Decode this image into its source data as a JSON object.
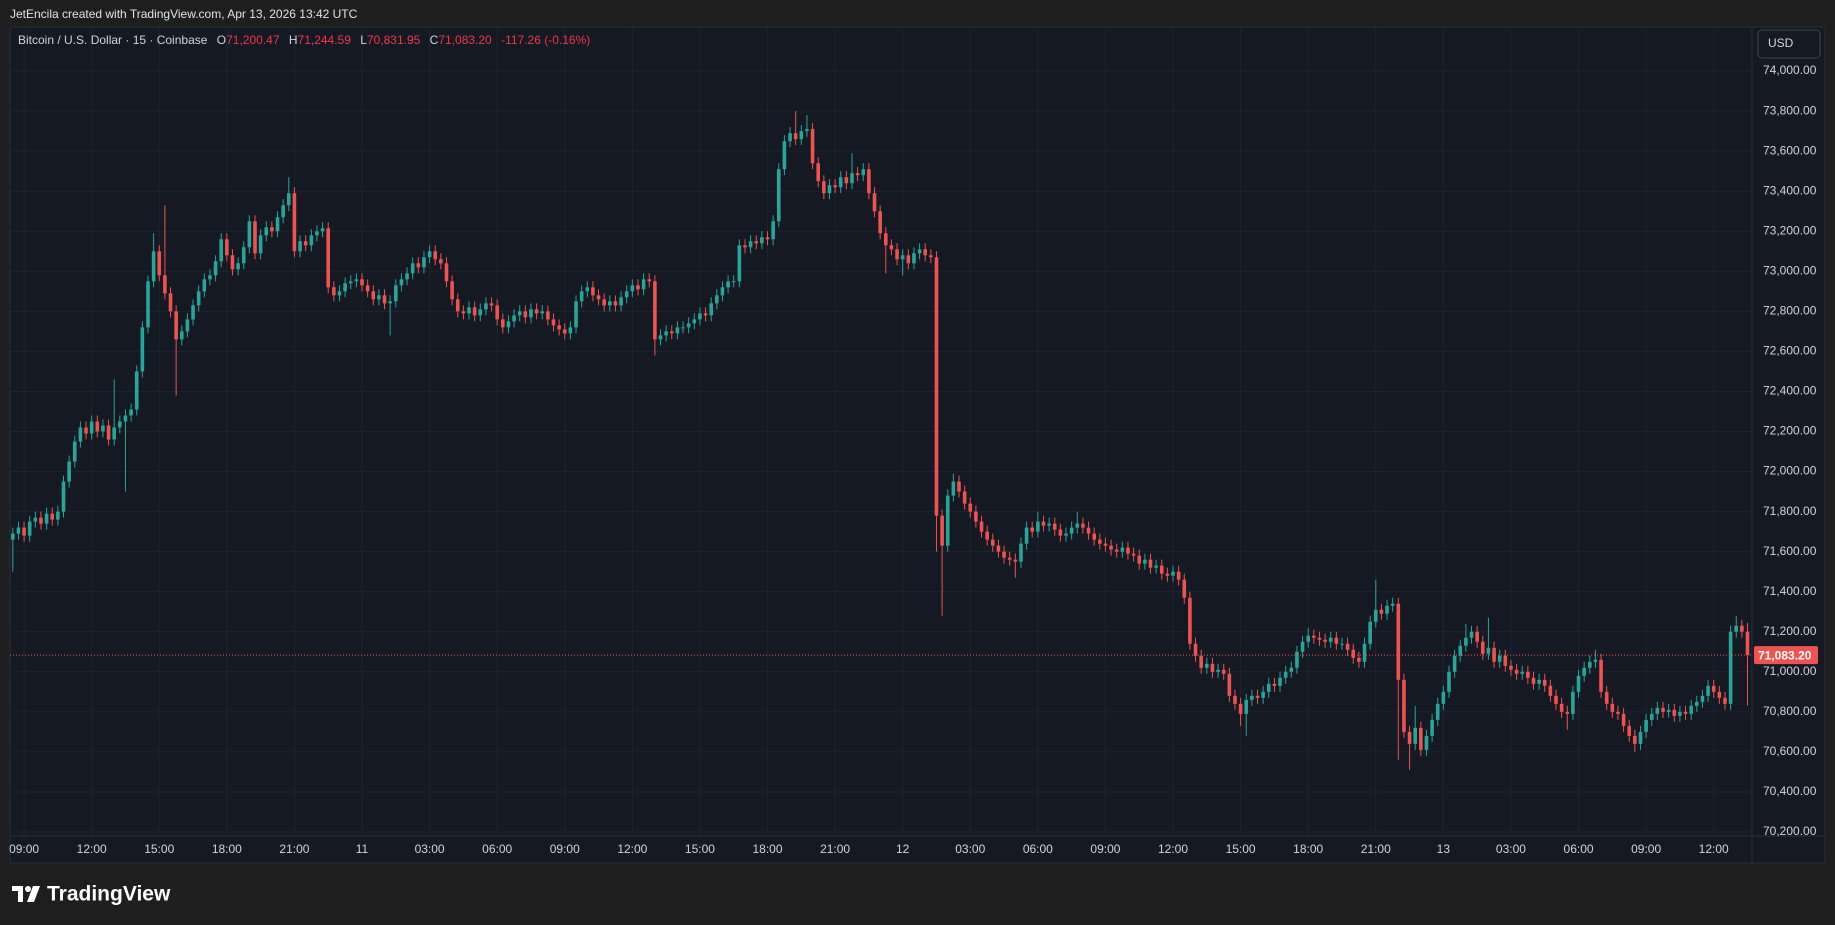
{
  "header": "JetEncila created with TradingView.com, Apr 13, 2026 13:42 UTC",
  "footer": {
    "brand": "TradingView"
  },
  "chart_data": {
    "type": "candlestick",
    "symbol": "Bitcoin / U.S. Dollar · 15 · Coinbase",
    "currency": "USD",
    "legend": {
      "keys": [
        "O",
        "H",
        "L",
        "C"
      ],
      "values": [
        "71,200.47",
        "71,244.59",
        "70,831.95",
        "71,083.20"
      ],
      "change": "-117.26 (-0.16%)"
    },
    "up_color": "#26a69a",
    "down_color": "#ef5350",
    "grid": true,
    "xlim": [
      -0.5,
      308.8
    ],
    "xticks": [
      {
        "value": 2,
        "label": "09:00"
      },
      {
        "value": 14,
        "label": "12:00"
      },
      {
        "value": 26,
        "label": "15:00"
      },
      {
        "value": 38,
        "label": "18:00"
      },
      {
        "value": 50,
        "label": "21:00"
      },
      {
        "value": 62,
        "label": "11"
      },
      {
        "value": 74,
        "label": "03:00"
      },
      {
        "value": 86,
        "label": "06:00"
      },
      {
        "value": 98,
        "label": "09:00"
      },
      {
        "value": 110,
        "label": "12:00"
      },
      {
        "value": 122,
        "label": "15:00"
      },
      {
        "value": 134,
        "label": "18:00"
      },
      {
        "value": 146,
        "label": "21:00"
      },
      {
        "value": 158,
        "label": "12"
      },
      {
        "value": 170,
        "label": "03:00"
      },
      {
        "value": 182,
        "label": "06:00"
      },
      {
        "value": 194,
        "label": "09:00"
      },
      {
        "value": 206,
        "label": "12:00"
      },
      {
        "value": 218,
        "label": "15:00"
      },
      {
        "value": 230,
        "label": "18:00"
      },
      {
        "value": 242,
        "label": "21:00"
      },
      {
        "value": 254,
        "label": "13"
      },
      {
        "value": 266,
        "label": "03:00"
      },
      {
        "value": 278,
        "label": "06:00"
      },
      {
        "value": 290,
        "label": "09:00"
      },
      {
        "value": 302,
        "label": "12:00"
      }
    ],
    "ylim": [
      70180,
      74215
    ],
    "yticks": [
      {
        "value": 70200,
        "label": "70,200.00"
      },
      {
        "value": 70400,
        "label": "70,400.00"
      },
      {
        "value": 70600,
        "label": "70,600.00"
      },
      {
        "value": 70800,
        "label": "70,800.00"
      },
      {
        "value": 71000,
        "label": "71,000.00"
      },
      {
        "value": 71200,
        "label": "71,200.00"
      },
      {
        "value": 71400,
        "label": "71,400.00"
      },
      {
        "value": 71600,
        "label": "71,600.00"
      },
      {
        "value": 71800,
        "label": "71,800.00"
      },
      {
        "value": 72000,
        "label": "72,000.00"
      },
      {
        "value": 72200,
        "label": "72,200.00"
      },
      {
        "value": 72400,
        "label": "72,400.00"
      },
      {
        "value": 72600,
        "label": "72,600.00"
      },
      {
        "value": 72800,
        "label": "72,800.00"
      },
      {
        "value": 73000,
        "label": "73,000.00"
      },
      {
        "value": 73200,
        "label": "73,200.00"
      },
      {
        "value": 73400,
        "label": "73,400.00"
      },
      {
        "value": 73600,
        "label": "73,600.00"
      },
      {
        "value": 73800,
        "label": "73,800.00"
      },
      {
        "value": 74000,
        "label": "74,000.00"
      }
    ],
    "open": [
      71660,
      71690,
      71720,
      71680,
      71750,
      71770,
      71740,
      71790,
      71760,
      71800,
      71950,
      72050,
      72150,
      72220,
      72190,
      72250,
      72200,
      72230,
      72160,
      72220,
      72250,
      72280,
      72310,
      72500,
      72720,
      72950,
      73100,
      72980,
      72890,
      72800,
      72660,
      72700,
      72760,
      72830,
      72900,
      72960,
      72980,
      73050,
      73160,
      73080,
      73010,
      73040,
      73120,
      73250,
      73090,
      73180,
      73220,
      73200,
      73270,
      73330,
      73390,
      73100,
      73150,
      73130,
      73180,
      73200,
      73215,
      72920,
      72880,
      72900,
      72940,
      72950,
      72960,
      72930,
      72900,
      72860,
      72880,
      72840,
      72850,
      72930,
      72960,
      72990,
      73040,
      73020,
      73070,
      73100,
      73060,
      73040,
      72950,
      72860,
      72800,
      72790,
      72820,
      72780,
      72810,
      72840,
      72830,
      72760,
      72720,
      72750,
      72780,
      72800,
      72770,
      72810,
      72790,
      72800,
      72760,
      72730,
      72710,
      72690,
      72720,
      72850,
      72900,
      72920,
      72880,
      72860,
      72830,
      72850,
      72830,
      72870,
      72900,
      72930,
      72910,
      72960,
      72950,
      72660,
      72680,
      72700,
      72690,
      72720,
      72720,
      72740,
      72760,
      72790,
      72780,
      72840,
      72880,
      72920,
      72950,
      72950,
      73130,
      73120,
      73150,
      73140,
      73170,
      73160,
      73250,
      73510,
      73650,
      73690,
      73660,
      73700,
      73710,
      73540,
      73450,
      73390,
      73430,
      73420,
      73470,
      73440,
      73490,
      73480,
      73510,
      73390,
      73300,
      73190,
      73130,
      73110,
      73060,
      73080,
      73040,
      73090,
      73110,
      73080,
      73070,
      71780,
      71630,
      71880,
      71950,
      71900,
      71840,
      71800,
      71750,
      71700,
      71660,
      71630,
      71600,
      71570,
      71560,
      71550,
      71640,
      71720,
      71700,
      71750,
      71730,
      71740,
      71710,
      71680,
      71690,
      71720,
      71740,
      71720,
      71690,
      71660,
      71640,
      71630,
      71610,
      71600,
      71620,
      71590,
      71580,
      71540,
      71560,
      71520,
      71530,
      71490,
      71480,
      71500,
      71460,
      71370,
      71140,
      71080,
      71020,
      71040,
      71000,
      71010,
      70990,
      70880,
      70840,
      70790,
      70860,
      70880,
      70870,
      70900,
      70940,
      70930,
      70970,
      71000,
      71020,
      71100,
      71150,
      71180,
      71170,
      71160,
      71150,
      71170,
      71140,
      71140,
      71110,
      71070,
      71050,
      71140,
      71250,
      71310,
      71290,
      71330,
      71340,
      70960,
      70700,
      70640,
      70720,
      70610,
      70680,
      70760,
      70840,
      70900,
      71000,
      71080,
      71130,
      71170,
      71200,
      71150,
      71090,
      71120,
      71050,
      71080,
      71030,
      71010,
      70990,
      71000,
      70970,
      70940,
      70960,
      70930,
      70880,
      70840,
      70800,
      70790,
      70900,
      70980,
      71020,
      71050,
      71060,
      70900,
      70840,
      70800,
      70790,
      70730,
      70680,
      70640,
      70700,
      70760,
      70790,
      70820,
      70800,
      70810,
      70780,
      70800,
      70790,
      70830,
      70850,
      70880,
      70930,
      70900,
      70870,
      70840,
      71200,
      71230,
      71200.47
    ],
    "high": [
      71720,
      71750,
      71750,
      71780,
      71800,
      71800,
      71820,
      71820,
      71830,
      71980,
      72080,
      72180,
      72250,
      72250,
      72280,
      72280,
      72260,
      72260,
      72460,
      72280,
      72310,
      72340,
      72530,
      72750,
      72980,
      73190,
      73130,
      73330,
      72920,
      72830,
      72730,
      72790,
      72860,
      72930,
      72990,
      73010,
      73080,
      73190,
      73190,
      73110,
      73070,
      73150,
      73280,
      73280,
      73210,
      73250,
      73250,
      73300,
      73360,
      73470,
      73420,
      73180,
      73180,
      73210,
      73230,
      73245,
      73245,
      72950,
      72930,
      72970,
      72980,
      72990,
      72990,
      72960,
      72930,
      72910,
      72910,
      72880,
      72960,
      72990,
      73020,
      73070,
      73070,
      73100,
      73130,
      73130,
      73090,
      73070,
      72980,
      72890,
      72830,
      72850,
      72850,
      72840,
      72870,
      72870,
      72860,
      72790,
      72780,
      72810,
      72830,
      72830,
      72840,
      72840,
      72830,
      72830,
      72790,
      72760,
      72740,
      72750,
      72880,
      72930,
      72950,
      72950,
      72910,
      72890,
      72880,
      72880,
      72900,
      72930,
      72960,
      72960,
      72990,
      72990,
      72980,
      72710,
      72730,
      72730,
      72750,
      72750,
      72770,
      72790,
      72820,
      72820,
      72870,
      72910,
      72950,
      72980,
      72980,
      73160,
      73160,
      73180,
      73180,
      73200,
      73200,
      73280,
      73540,
      73680,
      73720,
      73800,
      73730,
      73780,
      73740,
      73570,
      73480,
      73460,
      73460,
      73500,
      73500,
      73590,
      73520,
      73540,
      73540,
      73420,
      73330,
      73220,
      73160,
      73140,
      73110,
      73110,
      73120,
      73140,
      73140,
      73110,
      73100,
      71810,
      71910,
      71990,
      71980,
      71930,
      71870,
      71830,
      71780,
      71730,
      71690,
      71660,
      71630,
      71600,
      71590,
      71670,
      71750,
      71750,
      71800,
      71780,
      71770,
      71770,
      71740,
      71720,
      71750,
      71800,
      71770,
      71750,
      71720,
      71690,
      71670,
      71660,
      71640,
      71650,
      71650,
      71620,
      71610,
      71590,
      71590,
      71560,
      71560,
      71520,
      71530,
      71530,
      71490,
      71400,
      71170,
      71110,
      71070,
      71070,
      71040,
      71040,
      71020,
      70910,
      70870,
      70890,
      70910,
      70910,
      70930,
      70970,
      70970,
      71000,
      71030,
      71050,
      71130,
      71180,
      71220,
      71210,
      71200,
      71190,
      71200,
      71200,
      71170,
      71170,
      71140,
      71100,
      71170,
      71280,
      71460,
      71340,
      71360,
      71370,
      71370,
      70990,
      70730,
      70830,
      70750,
      70710,
      70790,
      70870,
      70930,
      71030,
      71110,
      71160,
      71240,
      71230,
      71230,
      71180,
      71270,
      71150,
      71110,
      71110,
      71060,
      71040,
      71030,
      71030,
      71000,
      70990,
      70990,
      70960,
      70910,
      70870,
      70830,
      70930,
      71010,
      71050,
      71080,
      71110,
      71090,
      70930,
      70870,
      70830,
      70820,
      70760,
      70710,
      70730,
      70790,
      70820,
      70850,
      70850,
      70840,
      70840,
      70830,
      70830,
      70860,
      70880,
      70910,
      70960,
      70960,
      70930,
      70900,
      71230,
      71280,
      71260,
      71244.59
    ],
    "low": [
      71500,
      71660,
      71650,
      71650,
      71720,
      71710,
      71710,
      71730,
      71730,
      71770,
      71920,
      72020,
      72120,
      72160,
      72160,
      72170,
      72170,
      72130,
      72130,
      72190,
      71900,
      72250,
      72280,
      72470,
      72690,
      72920,
      72950,
      72860,
      72770,
      72380,
      72630,
      72670,
      72730,
      72800,
      72870,
      72930,
      72950,
      73020,
      73050,
      72980,
      72980,
      73010,
      73090,
      73060,
      73060,
      73150,
      73170,
      73170,
      73240,
      73300,
      73070,
      73070,
      73100,
      73100,
      73150,
      73170,
      72890,
      72850,
      72850,
      72870,
      72910,
      72920,
      72900,
      72870,
      72830,
      72830,
      72810,
      72680,
      72820,
      72900,
      72930,
      72960,
      72990,
      72990,
      73040,
      73030,
      73010,
      72920,
      72830,
      72770,
      72760,
      72760,
      72750,
      72750,
      72780,
      72800,
      72730,
      72690,
      72690,
      72720,
      72750,
      72740,
      72740,
      72760,
      72760,
      72730,
      72700,
      72680,
      72660,
      72660,
      72690,
      72820,
      72870,
      72850,
      72830,
      72800,
      72800,
      72800,
      72800,
      72840,
      72870,
      72880,
      72880,
      72920,
      72580,
      72630,
      72650,
      72660,
      72660,
      72690,
      72690,
      72710,
      72730,
      72750,
      72750,
      72810,
      72850,
      72890,
      72920,
      72920,
      73090,
      73090,
      73110,
      73110,
      73130,
      73130,
      73220,
      73480,
      73620,
      73630,
      73630,
      73670,
      73510,
      73420,
      73360,
      73360,
      73390,
      73390,
      73410,
      73410,
      73450,
      73450,
      73360,
      73270,
      73160,
      72990,
      73080,
      73030,
      72980,
      73010,
      73010,
      73060,
      73050,
      73040,
      71600,
      71280,
      71600,
      71850,
      71870,
      71810,
      71770,
      71720,
      71670,
      71630,
      71600,
      71570,
      71540,
      71530,
      71470,
      71520,
      71610,
      71670,
      71670,
      71700,
      71700,
      71680,
      71650,
      71650,
      71660,
      71690,
      71690,
      71660,
      71630,
      71610,
      71600,
      71580,
      71570,
      71570,
      71560,
      71550,
      71510,
      71510,
      71490,
      71490,
      71460,
      71450,
      71450,
      71430,
      71340,
      71110,
      71050,
      70990,
      70990,
      70970,
      70970,
      70960,
      70850,
      70810,
      70730,
      70680,
      70830,
      70840,
      70840,
      70870,
      70900,
      70900,
      70940,
      70970,
      70990,
      71070,
      71120,
      71140,
      71130,
      71120,
      71120,
      71110,
      71110,
      71080,
      71040,
      71020,
      71020,
      71110,
      71220,
      71260,
      71260,
      71300,
      70560,
      70670,
      70510,
      70610,
      70580,
      70580,
      70650,
      70730,
      70810,
      70870,
      70970,
      71050,
      71100,
      71140,
      71120,
      71060,
      71060,
      71020,
      71020,
      71000,
      70980,
      70960,
      70960,
      70940,
      70910,
      70910,
      70900,
      70850,
      70810,
      70770,
      70710,
      70760,
      70870,
      70950,
      70990,
      71020,
      70870,
      70810,
      70770,
      70760,
      70700,
      70650,
      70600,
      70610,
      70670,
      70730,
      70760,
      70770,
      70770,
      70750,
      70750,
      70760,
      70760,
      70800,
      70820,
      70850,
      70870,
      70840,
      70810,
      70810,
      71170,
      71170,
      70831.95
    ],
    "close": [
      71690,
      71720,
      71680,
      71750,
      71770,
      71740,
      71790,
      71760,
      71800,
      71950,
      72050,
      72150,
      72220,
      72190,
      72250,
      72200,
      72230,
      72160,
      72220,
      72250,
      72280,
      72310,
      72500,
      72720,
      72950,
      73100,
      72980,
      72890,
      72800,
      72660,
      72700,
      72760,
      72830,
      72900,
      72960,
      72980,
      73050,
      73160,
      73080,
      73010,
      73040,
      73120,
      73250,
      73090,
      73180,
      73220,
      73200,
      73270,
      73330,
      73390,
      73100,
      73150,
      73130,
      73180,
      73200,
      73215,
      72920,
      72880,
      72900,
      72940,
      72950,
      72960,
      72930,
      72900,
      72860,
      72880,
      72840,
      72850,
      72930,
      72960,
      72990,
      73040,
      73020,
      73070,
      73100,
      73060,
      73040,
      72950,
      72860,
      72800,
      72790,
      72820,
      72780,
      72810,
      72840,
      72830,
      72760,
      72720,
      72750,
      72780,
      72800,
      72770,
      72810,
      72790,
      72800,
      72760,
      72730,
      72710,
      72690,
      72720,
      72850,
      72900,
      72920,
      72880,
      72860,
      72830,
      72850,
      72830,
      72870,
      72900,
      72930,
      72910,
      72960,
      72950,
      72660,
      72680,
      72700,
      72690,
      72720,
      72720,
      72740,
      72760,
      72790,
      72780,
      72840,
      72880,
      72920,
      72950,
      72950,
      73130,
      73120,
      73150,
      73140,
      73170,
      73160,
      73250,
      73510,
      73650,
      73690,
      73660,
      73700,
      73710,
      73540,
      73450,
      73390,
      73430,
      73420,
      73470,
      73440,
      73490,
      73480,
      73510,
      73390,
      73300,
      73190,
      73130,
      73110,
      73060,
      73080,
      73040,
      73090,
      73110,
      73080,
      73070,
      71780,
      71630,
      71880,
      71950,
      71900,
      71840,
      71800,
      71750,
      71700,
      71660,
      71630,
      71600,
      71570,
      71560,
      71550,
      71640,
      71720,
      71700,
      71750,
      71730,
      71740,
      71710,
      71680,
      71690,
      71720,
      71740,
      71720,
      71690,
      71660,
      71640,
      71630,
      71610,
      71600,
      71620,
      71590,
      71580,
      71540,
      71560,
      71520,
      71530,
      71490,
      71480,
      71500,
      71460,
      71370,
      71140,
      71080,
      71020,
      71040,
      71000,
      71010,
      70990,
      70880,
      70840,
      70790,
      70860,
      70880,
      70870,
      70900,
      70940,
      70930,
      70970,
      71000,
      71020,
      71100,
      71150,
      71180,
      71170,
      71160,
      71150,
      71170,
      71140,
      71140,
      71110,
      71070,
      71050,
      71140,
      71250,
      71310,
      71290,
      71330,
      71340,
      70960,
      70700,
      70640,
      70720,
      70610,
      70680,
      70760,
      70840,
      70900,
      71000,
      71080,
      71130,
      71170,
      71200,
      71150,
      71090,
      71120,
      71050,
      71080,
      71030,
      71010,
      70990,
      71000,
      70970,
      70940,
      70960,
      70930,
      70880,
      70840,
      70800,
      70790,
      70900,
      70980,
      71020,
      71050,
      71060,
      70900,
      70840,
      70800,
      70790,
      70730,
      70680,
      70640,
      70700,
      70760,
      70790,
      70820,
      70800,
      70810,
      70780,
      70800,
      70790,
      70830,
      70850,
      70880,
      70930,
      70900,
      70870,
      70840,
      71200,
      71230,
      71200.47,
      71083.2
    ]
  }
}
